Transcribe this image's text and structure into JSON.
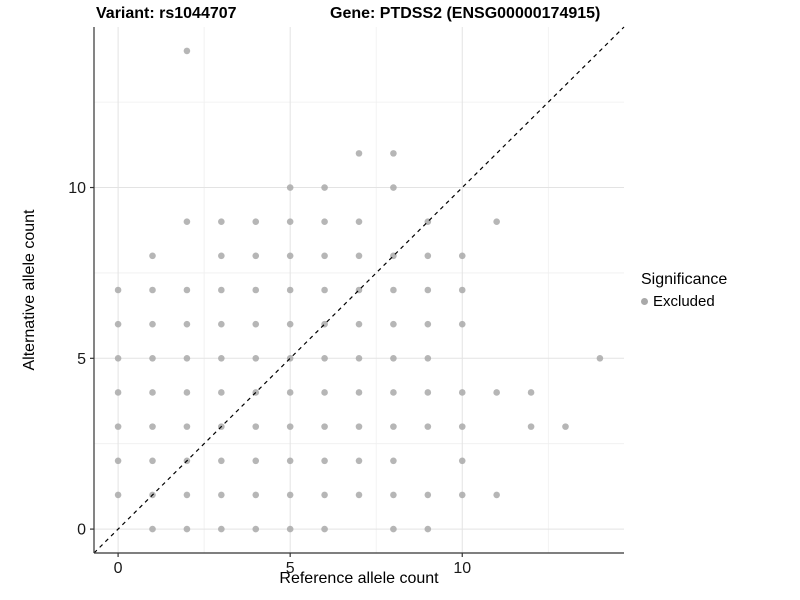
{
  "header": {
    "variant_title": "Variant: rs1044707",
    "gene_title": "Gene: PTDSS2 (ENSG00000174915)"
  },
  "legend": {
    "title": "Significance",
    "items": [
      {
        "label": "Excluded",
        "color": "#a9a9a9"
      }
    ]
  },
  "style": {
    "point_color": "#a9a9a9",
    "major_grid_color": "#e3e3e3",
    "minor_grid_color": "#efefef",
    "axis_color": "#333333",
    "identity_line_color": "#000000",
    "tick_label_color": "#1a1a1a"
  },
  "chart_data": {
    "type": "scatter",
    "title": "Variant: rs1044707 / Gene: PTDSS2 (ENSG00000174915)",
    "xlabel": "Reference allele count",
    "ylabel": "Alternative allele count",
    "xlim": [
      -0.7,
      14.7
    ],
    "ylim": [
      -0.7,
      14.7
    ],
    "x_ticks": [
      0,
      5,
      10
    ],
    "y_ticks": [
      0,
      5,
      10
    ],
    "x_minor_gridlines": [
      2.5,
      7.5,
      12.5
    ],
    "y_minor_gridlines": [
      2.5,
      7.5,
      12.5
    ],
    "grid": true,
    "legend_position": "right",
    "identity_line": {
      "shown": true,
      "style": "dashed",
      "slope": 1,
      "intercept": 0
    },
    "series": [
      {
        "name": "Excluded",
        "color": "#a9a9a9",
        "points": [
          [
            1,
            0
          ],
          [
            2,
            0
          ],
          [
            3,
            0
          ],
          [
            4,
            0
          ],
          [
            5,
            0
          ],
          [
            6,
            0
          ],
          [
            8,
            0
          ],
          [
            9,
            0
          ],
          [
            0,
            1
          ],
          [
            1,
            1
          ],
          [
            2,
            1
          ],
          [
            3,
            1
          ],
          [
            4,
            1
          ],
          [
            5,
            1
          ],
          [
            6,
            1
          ],
          [
            7,
            1
          ],
          [
            8,
            1
          ],
          [
            9,
            1
          ],
          [
            10,
            1
          ],
          [
            11,
            1
          ],
          [
            0,
            2
          ],
          [
            1,
            2
          ],
          [
            2,
            2
          ],
          [
            3,
            2
          ],
          [
            4,
            2
          ],
          [
            5,
            2
          ],
          [
            6,
            2
          ],
          [
            7,
            2
          ],
          [
            8,
            2
          ],
          [
            10,
            2
          ],
          [
            0,
            3
          ],
          [
            1,
            3
          ],
          [
            2,
            3
          ],
          [
            3,
            3
          ],
          [
            4,
            3
          ],
          [
            5,
            3
          ],
          [
            6,
            3
          ],
          [
            7,
            3
          ],
          [
            8,
            3
          ],
          [
            9,
            3
          ],
          [
            10,
            3
          ],
          [
            12,
            3
          ],
          [
            13,
            3
          ],
          [
            0,
            4
          ],
          [
            1,
            4
          ],
          [
            2,
            4
          ],
          [
            3,
            4
          ],
          [
            4,
            4
          ],
          [
            5,
            4
          ],
          [
            6,
            4
          ],
          [
            7,
            4
          ],
          [
            8,
            4
          ],
          [
            9,
            4
          ],
          [
            10,
            4
          ],
          [
            11,
            4
          ],
          [
            12,
            4
          ],
          [
            0,
            5
          ],
          [
            1,
            5
          ],
          [
            2,
            5
          ],
          [
            3,
            5
          ],
          [
            4,
            5
          ],
          [
            5,
            5
          ],
          [
            6,
            5
          ],
          [
            7,
            5
          ],
          [
            8,
            5
          ],
          [
            9,
            5
          ],
          [
            14,
            5
          ],
          [
            0,
            6
          ],
          [
            1,
            6
          ],
          [
            2,
            6
          ],
          [
            3,
            6
          ],
          [
            4,
            6
          ],
          [
            5,
            6
          ],
          [
            6,
            6
          ],
          [
            7,
            6
          ],
          [
            8,
            6
          ],
          [
            9,
            6
          ],
          [
            10,
            6
          ],
          [
            0,
            7
          ],
          [
            1,
            7
          ],
          [
            2,
            7
          ],
          [
            3,
            7
          ],
          [
            4,
            7
          ],
          [
            5,
            7
          ],
          [
            6,
            7
          ],
          [
            7,
            7
          ],
          [
            8,
            7
          ],
          [
            9,
            7
          ],
          [
            10,
            7
          ],
          [
            1,
            8
          ],
          [
            3,
            8
          ],
          [
            4,
            8
          ],
          [
            5,
            8
          ],
          [
            6,
            8
          ],
          [
            7,
            8
          ],
          [
            8,
            8
          ],
          [
            9,
            8
          ],
          [
            10,
            8
          ],
          [
            2,
            9
          ],
          [
            3,
            9
          ],
          [
            4,
            9
          ],
          [
            5,
            9
          ],
          [
            6,
            9
          ],
          [
            7,
            9
          ],
          [
            9,
            9
          ],
          [
            11,
            9
          ],
          [
            5,
            10
          ],
          [
            6,
            10
          ],
          [
            8,
            10
          ],
          [
            7,
            11
          ],
          [
            8,
            11
          ],
          [
            2,
            14
          ]
        ]
      }
    ]
  }
}
